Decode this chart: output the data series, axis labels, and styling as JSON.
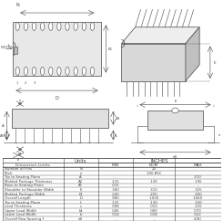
{
  "bg_color": "#ffffff",
  "rows": [
    [
      "Number of Pins",
      "N",
      "",
      "20",
      ""
    ],
    [
      "Pitch",
      "e",
      "",
      "100 BSC",
      ""
    ],
    [
      "Tip to Seating Plane",
      "A",
      "-",
      "-",
      ".210"
    ],
    [
      "Molded Package Thickness",
      "A2",
      ".115",
      ".130",
      ".195"
    ],
    [
      "Base to Seating Plane",
      "A1",
      ".015",
      "-",
      "-"
    ],
    [
      "Shoulder to Shoulder Width",
      "E",
      ".300",
      ".310",
      ".325"
    ],
    [
      "Molded Package Width",
      "E1",
      ".240",
      ".250",
      ".260"
    ],
    [
      "Overall Length",
      "D",
      ".980",
      "1.030",
      "1.060"
    ],
    [
      "Tip to Seating Plane",
      "L",
      ".115",
      ".130",
      ".150"
    ],
    [
      "Lead Thickness",
      "c",
      ".008",
      ".010",
      ".015"
    ],
    [
      "Upper Lead Width",
      "b1",
      ".045",
      ".060",
      ".070"
    ],
    [
      "Lower Lead Width",
      "b",
      ".014",
      ".018",
      ".022"
    ],
    [
      "Overall Row Spacing §",
      "eB",
      "-",
      "-",
      "4.90"
    ]
  ]
}
